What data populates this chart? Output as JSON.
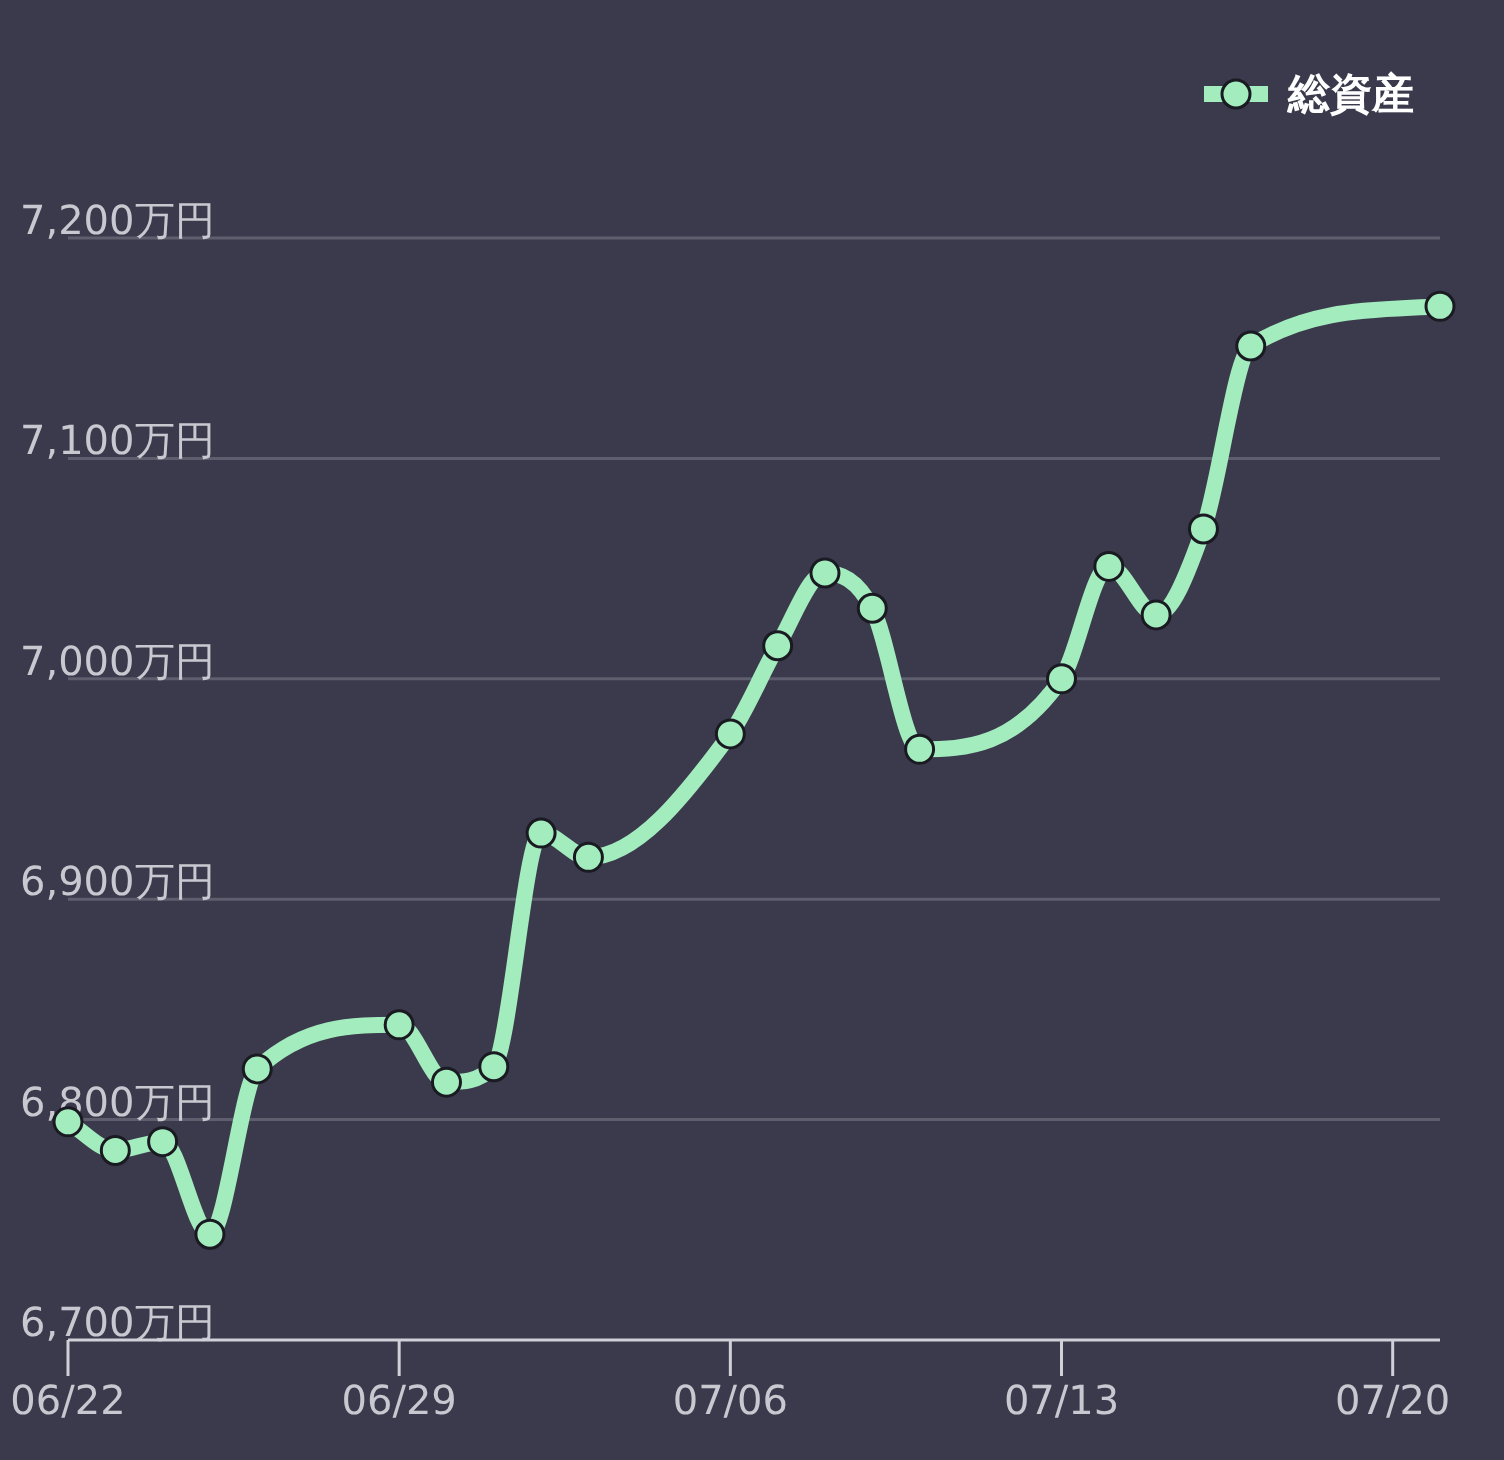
{
  "chart_data": {
    "type": "line",
    "x": [
      "--06-22",
      "--06-23",
      "--06-24",
      "--06-25",
      "--06-26",
      "--06-29",
      "--06-30",
      "--07-01",
      "--07-02",
      "--07-03",
      "--07-06",
      "--07-07",
      "--07-08",
      "--07-09",
      "--07-10",
      "--07-13",
      "--07-14",
      "--07-15",
      "--07-16",
      "--07-17",
      "--07-21"
    ],
    "series": [
      {
        "name": "総資産",
        "color": "#a3ecbd",
        "values": [
          6799,
          6786,
          6790,
          6748,
          6823,
          6843,
          6817,
          6824,
          6930,
          6919,
          6975,
          7015,
          7048,
          7032,
          6968,
          7000,
          7051,
          7029,
          7068,
          7151,
          7169
        ]
      }
    ],
    "xlim": [
      "--06-22",
      "--07-21"
    ],
    "xticks": [
      {
        "value": "--06-22",
        "label": "06/22"
      },
      {
        "value": "--06-29",
        "label": "06/29"
      },
      {
        "value": "--07-06",
        "label": "07/06"
      },
      {
        "value": "--07-13",
        "label": "07/13"
      },
      {
        "value": "--07-20",
        "label": "07/20"
      }
    ],
    "ylim": [
      6700,
      7200
    ],
    "yticks": [
      {
        "value": 6700,
        "label": "6,700万円"
      },
      {
        "value": 6800,
        "label": "6,800万円"
      },
      {
        "value": 6900,
        "label": "6,900万円"
      },
      {
        "value": 7000,
        "label": "7,000万円"
      },
      {
        "value": 7100,
        "label": "7,100万円"
      },
      {
        "value": 7200,
        "label": "7,200万円"
      }
    ],
    "grid": "y",
    "legend": "top right",
    "marker": "circle",
    "line_style": "solid"
  }
}
